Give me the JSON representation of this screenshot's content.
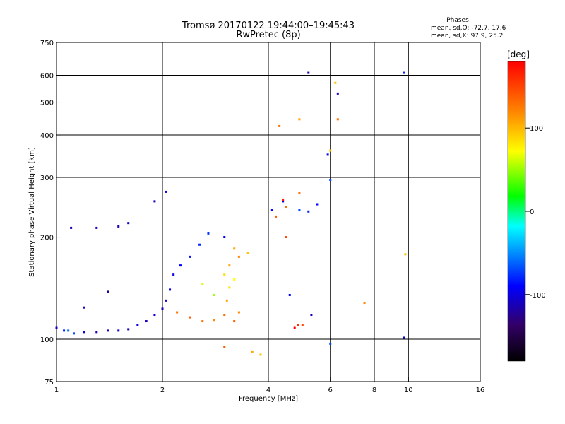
{
  "chart_data": {
    "type": "scatter",
    "title": "Tromsø 20170122 19:44:00–19:45:43",
    "subtitle": "RwPretec (8p)",
    "xlabel": "Frequency [MHz]",
    "ylabel": "Stationary phase Virtual Height [km]",
    "x_scale": "log",
    "y_scale": "log",
    "xlim": [
      1,
      16
    ],
    "ylim": [
      75,
      750
    ],
    "x_ticks": [
      1,
      2,
      4,
      6,
      8,
      10,
      16
    ],
    "y_ticks": [
      75,
      100,
      200,
      300,
      400,
      500,
      600,
      750
    ],
    "x_grid": [
      2,
      4,
      6,
      8,
      10
    ],
    "y_grid": [
      100,
      200,
      300,
      400,
      500,
      600
    ],
    "grid": true,
    "stats": {
      "heading": "Phases",
      "line_o": "mean, sd,O: -72.7, 17.6",
      "line_x": "mean, sd,X:  97.9, 25.2"
    },
    "colorbar": {
      "label": "[deg]",
      "ticks": [
        100,
        0,
        -100
      ],
      "range": [
        -180,
        180
      ],
      "colors_top_to_bottom": [
        "#ff0000",
        "#ff8800",
        "#ffff00",
        "#00ff00",
        "#00ffff",
        "#0000ff",
        "#000000"
      ]
    },
    "series": [
      {
        "values": [
          [
            1.0,
            108,
            -110
          ],
          [
            1.05,
            106,
            -80
          ],
          [
            1.08,
            106,
            -60
          ],
          [
            1.12,
            104,
            -70
          ],
          [
            1.2,
            105,
            -100
          ],
          [
            1.3,
            105,
            -110
          ],
          [
            1.4,
            106,
            -105
          ],
          [
            1.5,
            106,
            -100
          ],
          [
            1.6,
            107,
            -110
          ],
          [
            1.7,
            110,
            -100
          ],
          [
            1.8,
            113,
            -110
          ],
          [
            1.9,
            118,
            -100
          ],
          [
            2.0,
            123,
            -110
          ],
          [
            2.05,
            130,
            -105
          ],
          [
            2.1,
            140,
            -100
          ],
          [
            2.15,
            155,
            -95
          ],
          [
            2.25,
            165,
            -90
          ],
          [
            2.4,
            175,
            -85
          ],
          [
            2.55,
            190,
            -80
          ],
          [
            2.7,
            205,
            -75
          ],
          [
            1.1,
            213,
            -110
          ],
          [
            1.3,
            213,
            -110
          ],
          [
            1.5,
            215,
            -110
          ],
          [
            1.6,
            220,
            -100
          ],
          [
            1.9,
            255,
            -110
          ],
          [
            2.05,
            272,
            -100
          ],
          [
            5.2,
            610,
            -110
          ],
          [
            6.3,
            530,
            -110
          ],
          [
            9.7,
            610,
            -80
          ],
          [
            5.9,
            350,
            -100
          ],
          [
            6.0,
            295,
            -70
          ],
          [
            5.5,
            250,
            -90
          ],
          [
            4.4,
            255,
            -100
          ],
          [
            4.1,
            240,
            -90
          ],
          [
            4.9,
            240,
            -70
          ],
          [
            5.2,
            238,
            -80
          ],
          [
            4.6,
            135,
            -90
          ],
          [
            5.3,
            118,
            -110
          ],
          [
            9.7,
            101,
            -100
          ],
          [
            6.0,
            97,
            -70
          ],
          [
            3.0,
            200,
            -90
          ],
          [
            1.2,
            124,
            -110
          ],
          [
            1.4,
            138,
            -120
          ]
        ]
      },
      {
        "values": [
          [
            2.2,
            120,
            130
          ],
          [
            2.4,
            116,
            140
          ],
          [
            2.6,
            113,
            130
          ],
          [
            2.8,
            114,
            120
          ],
          [
            3.0,
            118,
            130
          ],
          [
            3.2,
            113,
            140
          ],
          [
            3.3,
            120,
            120
          ],
          [
            3.05,
            130,
            110
          ],
          [
            3.1,
            142,
            90
          ],
          [
            3.2,
            150,
            80
          ],
          [
            3.0,
            155,
            90
          ],
          [
            3.1,
            165,
            110
          ],
          [
            3.3,
            175,
            120
          ],
          [
            3.5,
            180,
            100
          ],
          [
            3.2,
            185,
            110
          ],
          [
            2.6,
            145,
            70
          ],
          [
            2.8,
            135,
            60
          ],
          [
            3.6,
            92,
            110
          ],
          [
            3.8,
            90,
            100
          ],
          [
            4.3,
            425,
            130
          ],
          [
            4.9,
            445,
            110
          ],
          [
            6.3,
            445,
            130
          ],
          [
            6.2,
            570,
            100
          ],
          [
            6.0,
            360,
            100
          ],
          [
            4.5,
            245,
            130
          ],
          [
            4.2,
            230,
            140
          ],
          [
            4.5,
            200,
            150
          ],
          [
            4.9,
            270,
            130
          ],
          [
            4.85,
            110,
            160
          ],
          [
            4.75,
            108,
            180
          ],
          [
            5.0,
            110,
            150
          ],
          [
            7.5,
            128,
            120
          ],
          [
            9.8,
            178,
            100
          ],
          [
            3.0,
            95,
            140
          ],
          [
            4.4,
            258,
            170
          ]
        ]
      }
    ]
  }
}
